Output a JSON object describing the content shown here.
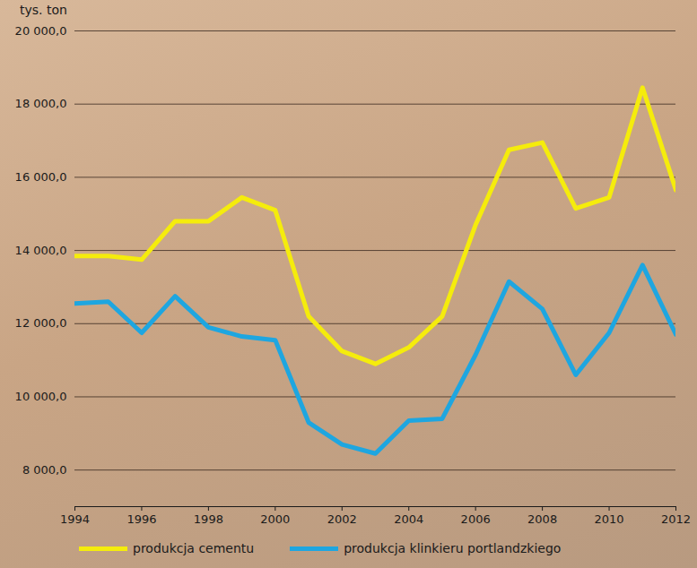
{
  "chart_data": {
    "type": "line",
    "y_label": "tys. ton",
    "x": [
      1994,
      1995,
      1996,
      1997,
      1998,
      1999,
      2000,
      2001,
      2002,
      2003,
      2004,
      2005,
      2006,
      2007,
      2008,
      2009,
      2010,
      2011,
      2012
    ],
    "series": [
      {
        "name": "produkcja cementu",
        "color": "#f5ec0c",
        "values": [
          13850,
          13850,
          13750,
          14800,
          14800,
          15450,
          15100,
          12200,
          11250,
          10900,
          11350,
          12200,
          14700,
          16750,
          16950,
          15150,
          15450,
          18450,
          15650
        ]
      },
      {
        "name": "produkcja klinkieru portlandzkiego",
        "color": "#1ea6e0",
        "values": [
          12550,
          12600,
          11750,
          12750,
          11900,
          11650,
          11550,
          9300,
          8700,
          8450,
          9350,
          9400,
          11150,
          13150,
          12400,
          10600,
          11750,
          13600,
          11700
        ]
      }
    ],
    "xlim": [
      1994,
      2012
    ],
    "xticks": [
      1994,
      1996,
      1998,
      2000,
      2002,
      2004,
      2006,
      2008,
      2010,
      2012
    ],
    "ylim": [
      7000,
      20000
    ],
    "yticks": [
      {
        "value": 8000,
        "label": "8 000,0"
      },
      {
        "value": 10000,
        "label": "10 000,0"
      },
      {
        "value": 12000,
        "label": "12 000,0"
      },
      {
        "value": 14000,
        "label": "14 000,0"
      },
      {
        "value": 16000,
        "label": "16 000,0"
      },
      {
        "value": 18000,
        "label": "18 000,0"
      },
      {
        "value": 20000,
        "label": "20 000,0"
      }
    ],
    "grid": true,
    "legend": "bottom"
  }
}
